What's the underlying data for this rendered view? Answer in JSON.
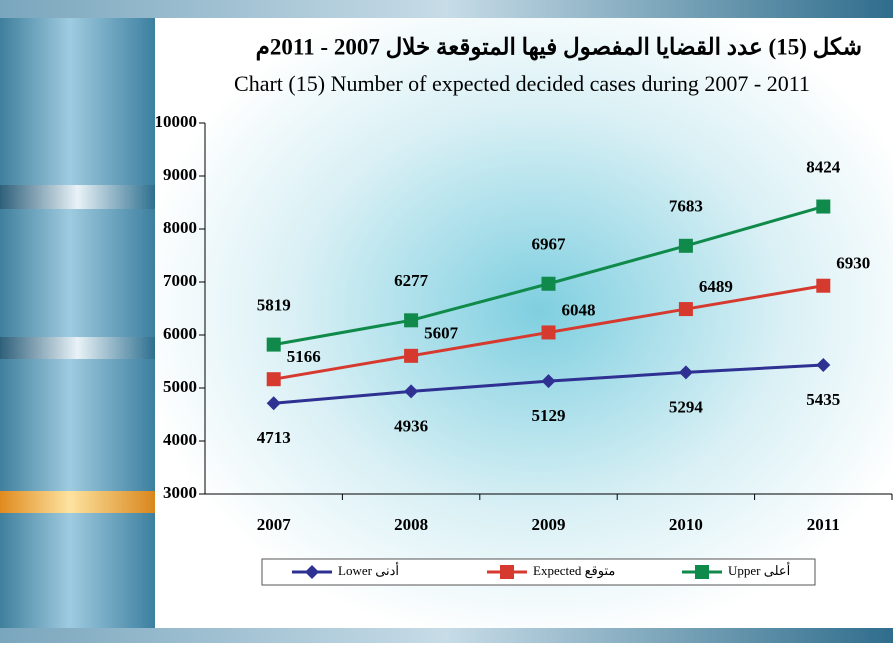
{
  "chart_data": {
    "type": "line",
    "title": "شكل (15) عدد القضايا المفصول فيها المتوقعة خلال 2007 - 2011م",
    "subtitle": "Chart (15) Number of expected decided cases during 2007 - 2011",
    "categories": [
      "2007",
      "2008",
      "2009",
      "2010",
      "2011"
    ],
    "series": [
      {
        "name": "Lower أدنى",
        "color": "#2e3192",
        "marker": "diamond",
        "values": [
          4713,
          4936,
          5129,
          5294,
          5435
        ]
      },
      {
        "name": "Expected متوقع",
        "color": "#d63a2f",
        "marker": "square",
        "values": [
          5166,
          5607,
          6048,
          6489,
          6930
        ]
      },
      {
        "name": "Upper أعلى",
        "color": "#0f8a4a",
        "marker": "square",
        "values": [
          5819,
          6277,
          6967,
          7683,
          8424
        ]
      }
    ],
    "ylim": [
      3000,
      10000
    ],
    "yticks": [
      3000,
      4000,
      5000,
      6000,
      7000,
      8000,
      9000,
      10000
    ],
    "legend": "bottom"
  }
}
